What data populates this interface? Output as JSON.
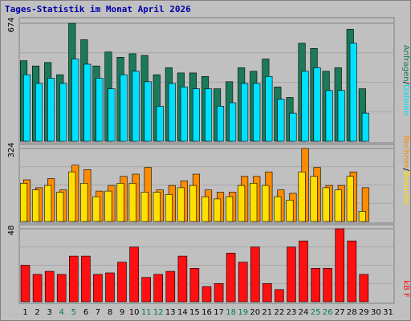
{
  "title": "Tages-Statistik im Monat April 2026",
  "colors": {
    "background": "#c0c0c0",
    "panel": "#c0c0c0",
    "border": "#808080",
    "title": "#0000a8",
    "weekday_label": "#000000",
    "weekend_label": "#008040",
    "anfragen": "#1a7a5a",
    "dateien": "#00e0ff",
    "rechner": "#ff8c00",
    "besuche": "#ffe000",
    "kb": "#ff1010"
  },
  "chart_data": [
    {
      "type": "bar",
      "categories": [
        "1",
        "2",
        "3",
        "4",
        "5",
        "6",
        "7",
        "8",
        "9",
        "10",
        "11",
        "12",
        "13",
        "14",
        "15",
        "16",
        "17",
        "18",
        "19",
        "20",
        "21",
        "22",
        "23",
        "24",
        "25",
        "26",
        "27",
        "28",
        "29",
        "30",
        "31"
      ],
      "weekend_days": [
        "4",
        "5",
        "11",
        "12",
        "18",
        "19",
        "25",
        "26"
      ],
      "y_tick": "674",
      "ylim": [
        0,
        674
      ],
      "grid": true,
      "series": [
        {
          "name": "Anfragen",
          "values": [
            460,
            430,
            450,
            380,
            674,
            580,
            430,
            510,
            480,
            500,
            490,
            380,
            420,
            390,
            390,
            370,
            300,
            340,
            420,
            400,
            470,
            310,
            250,
            560,
            530,
            400,
            420,
            640,
            300,
            0,
            0
          ]
        },
        {
          "name": "Dateien",
          "values": [
            380,
            330,
            360,
            330,
            470,
            440,
            360,
            300,
            380,
            400,
            340,
            200,
            330,
            310,
            300,
            300,
            200,
            220,
            330,
            330,
            370,
            240,
            160,
            400,
            420,
            290,
            290,
            560,
            160,
            0,
            0
          ]
        }
      ],
      "legend": [
        {
          "text": "Anfragen",
          "color": "#1a7a5a"
        },
        {
          "text": "Dateien",
          "color": "#00e0ff"
        }
      ]
    },
    {
      "type": "bar",
      "categories": [
        "1",
        "2",
        "3",
        "4",
        "5",
        "6",
        "7",
        "8",
        "9",
        "10",
        "11",
        "12",
        "13",
        "14",
        "15",
        "16",
        "17",
        "18",
        "19",
        "20",
        "21",
        "22",
        "23",
        "24",
        "25",
        "26",
        "27",
        "28",
        "29",
        "30",
        "31"
      ],
      "y_tick": "324",
      "ylim": [
        0,
        324
      ],
      "grid": true,
      "series": [
        {
          "name": "Besuche",
          "values": [
            170,
            140,
            160,
            130,
            220,
            170,
            110,
            135,
            170,
            170,
            130,
            130,
            120,
            150,
            160,
            110,
            100,
            110,
            160,
            170,
            160,
            110,
            95,
            220,
            200,
            150,
            140,
            200,
            45,
            0,
            0
          ]
        },
        {
          "name": "Rechner",
          "values": [
            185,
            150,
            190,
            140,
            250,
            230,
            135,
            160,
            200,
            210,
            240,
            140,
            160,
            180,
            210,
            140,
            130,
            130,
            200,
            200,
            220,
            140,
            125,
            324,
            240,
            160,
            160,
            220,
            150,
            0,
            0
          ]
        }
      ],
      "legend": [
        {
          "text": "Rechner",
          "color": "#ff8c00"
        },
        {
          "text": "Besuche",
          "color": "#ffe000"
        }
      ]
    },
    {
      "type": "bar",
      "categories": [
        "1",
        "2",
        "3",
        "4",
        "5",
        "6",
        "7",
        "8",
        "9",
        "10",
        "11",
        "12",
        "13",
        "14",
        "15",
        "16",
        "17",
        "18",
        "19",
        "20",
        "21",
        "22",
        "23",
        "24",
        "25",
        "26",
        "27",
        "28",
        "29",
        "30",
        "31"
      ],
      "y_tick": "48",
      "ylim": [
        0,
        48
      ],
      "grid": true,
      "series": [
        {
          "name": "kB F",
          "values": [
            24,
            18,
            20,
            18,
            30,
            30,
            18,
            19,
            26,
            36,
            16,
            18,
            20,
            30,
            22,
            10,
            12,
            32,
            26,
            36,
            12,
            8,
            36,
            40,
            22,
            22,
            48,
            40,
            18,
            0,
            0
          ]
        }
      ],
      "legend": [
        {
          "text": "kB F",
          "color": "#ff1010"
        }
      ]
    }
  ],
  "legend_separator": "/"
}
